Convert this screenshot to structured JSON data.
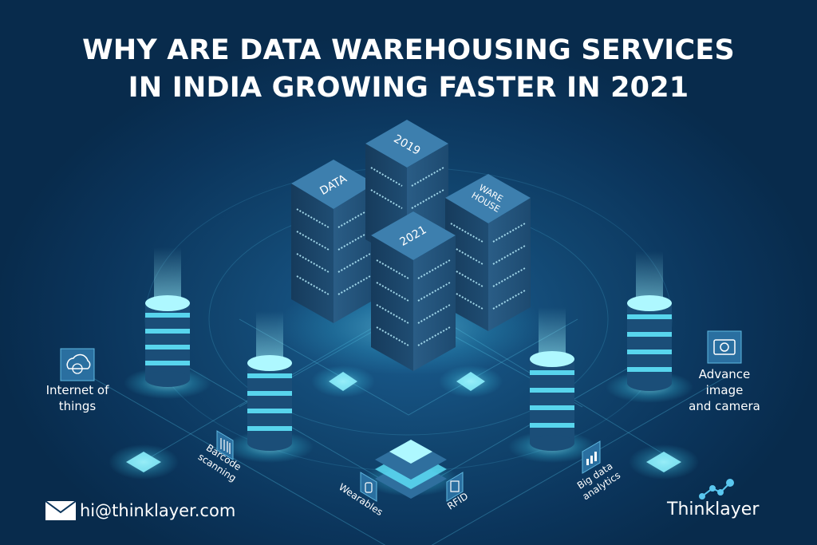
{
  "title": {
    "line1": "WHY ARE DATA WAREHOUSING SERVICES",
    "line2": "IN INDIA GROWING FASTER IN 2021"
  },
  "servers": {
    "data": "DATA",
    "y2019": "2019",
    "warehouse_line1": "WARE",
    "warehouse_line2": "HOUSE",
    "y2021": "2021"
  },
  "labels": {
    "iot_line1": "Internet of",
    "iot_line2": "things",
    "advance_line1": "Advance",
    "advance_line2": "image",
    "advance_line3": "and camera",
    "barcode_line1": "Barcode",
    "barcode_line2": "scanning",
    "wearables": "Wearables",
    "rfid": "RFID",
    "bigdata_line1": "Big data",
    "bigdata_line2": "analytics"
  },
  "footer": {
    "email": "hi@thinklayer.com",
    "brand": "Thinklayer"
  },
  "icons": {
    "iot": "globe-cloud-icon",
    "advance": "camera-icon",
    "barcode": "barcode-icon",
    "wearables": "watch-icon",
    "rfid": "rfid-icon",
    "bigdata": "chart-icon",
    "email": "envelope-icon"
  },
  "colors": {
    "background": "#0b355c",
    "glow": "#7ff0ff",
    "server_face": "#1e4a6e",
    "text": "#ffffff"
  }
}
